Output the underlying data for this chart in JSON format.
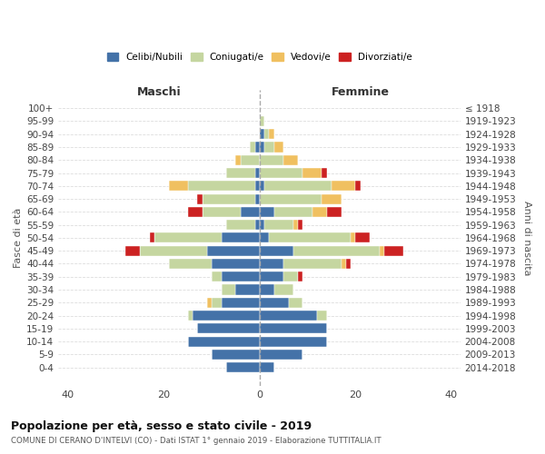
{
  "age_groups": [
    "0-4",
    "5-9",
    "10-14",
    "15-19",
    "20-24",
    "25-29",
    "30-34",
    "35-39",
    "40-44",
    "45-49",
    "50-54",
    "55-59",
    "60-64",
    "65-69",
    "70-74",
    "75-79",
    "80-84",
    "85-89",
    "90-94",
    "95-99",
    "100+"
  ],
  "birth_years": [
    "2014-2018",
    "2009-2013",
    "2004-2008",
    "1999-2003",
    "1994-1998",
    "1989-1993",
    "1984-1988",
    "1979-1983",
    "1974-1978",
    "1969-1973",
    "1964-1968",
    "1959-1963",
    "1954-1958",
    "1949-1953",
    "1944-1948",
    "1939-1943",
    "1934-1938",
    "1929-1933",
    "1924-1928",
    "1919-1923",
    "≤ 1918"
  ],
  "colors": {
    "celibi": "#4472a8",
    "coniugati": "#c5d6a0",
    "vedovi": "#f0c060",
    "divorziati": "#cc2222"
  },
  "males": {
    "celibi": [
      7,
      10,
      15,
      13,
      14,
      8,
      5,
      8,
      10,
      11,
      8,
      1,
      4,
      1,
      1,
      1,
      0,
      1,
      0,
      0,
      0
    ],
    "coniugati": [
      0,
      0,
      0,
      0,
      1,
      2,
      3,
      2,
      9,
      14,
      14,
      6,
      8,
      11,
      14,
      6,
      4,
      1,
      0,
      0,
      0
    ],
    "vedovi": [
      0,
      0,
      0,
      0,
      0,
      1,
      0,
      0,
      0,
      0,
      0,
      0,
      0,
      0,
      4,
      0,
      1,
      0,
      0,
      0,
      0
    ],
    "divorziati": [
      0,
      0,
      0,
      0,
      0,
      0,
      0,
      0,
      0,
      3,
      1,
      0,
      3,
      1,
      0,
      0,
      0,
      0,
      0,
      0,
      0
    ]
  },
  "females": {
    "celibi": [
      3,
      9,
      14,
      14,
      12,
      6,
      3,
      5,
      5,
      7,
      2,
      1,
      3,
      0,
      1,
      0,
      0,
      1,
      1,
      0,
      0
    ],
    "coniugati": [
      0,
      0,
      0,
      0,
      2,
      3,
      4,
      3,
      12,
      18,
      17,
      6,
      8,
      13,
      14,
      9,
      5,
      2,
      1,
      1,
      0
    ],
    "vedovi": [
      0,
      0,
      0,
      0,
      0,
      0,
      0,
      0,
      1,
      1,
      1,
      1,
      3,
      4,
      5,
      4,
      3,
      2,
      1,
      0,
      0
    ],
    "divorziati": [
      0,
      0,
      0,
      0,
      0,
      0,
      0,
      1,
      1,
      4,
      3,
      1,
      3,
      0,
      1,
      1,
      0,
      0,
      0,
      0,
      0
    ]
  },
  "xlim": [
    -42,
    42
  ],
  "xticks": [
    -40,
    -20,
    0,
    20,
    40
  ],
  "xticklabels": [
    "40",
    "20",
    "0",
    "20",
    "40"
  ],
  "title": "Popolazione per età, sesso e stato civile - 2019",
  "subtitle": "COMUNE DI CERANO D'INTELVI (CO) - Dati ISTAT 1° gennaio 2019 - Elaborazione TUTTITALIA.IT",
  "ylabel_left": "Fasce di età",
  "ylabel_right": "Anni di nascita",
  "header_left": "Maschi",
  "header_right": "Femmine",
  "bg_color": "#f9f9f9"
}
